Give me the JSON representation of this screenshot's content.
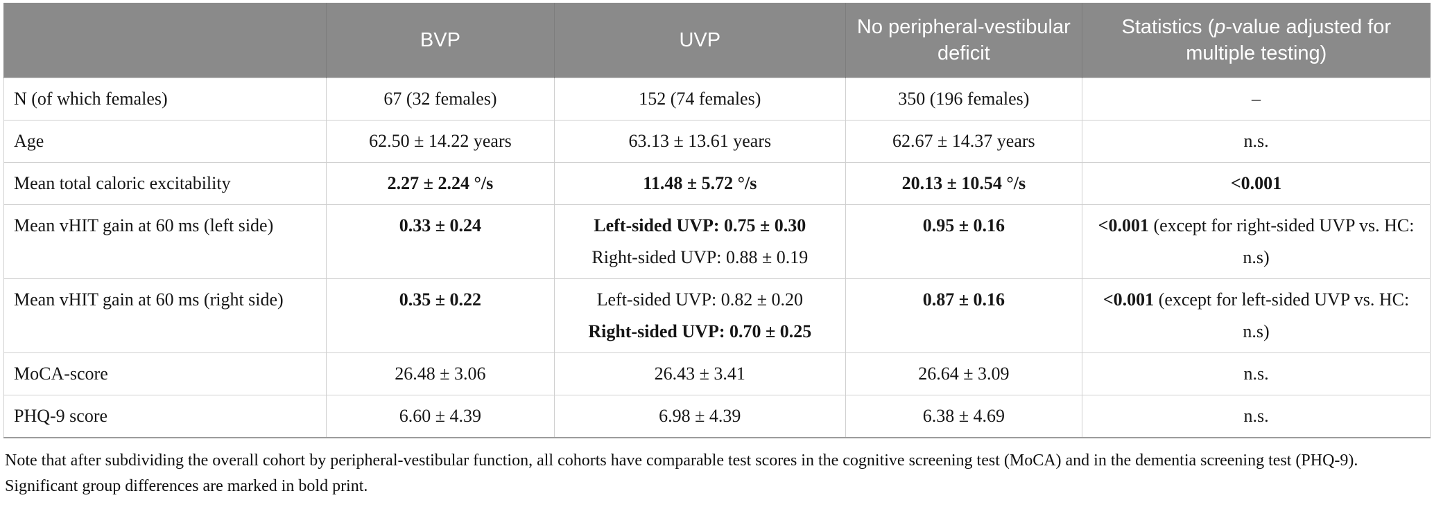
{
  "colors": {
    "header_bg": "#8a8a8a",
    "header_text": "#ffffff",
    "cell_border": "#cfcfcf",
    "table_bottom_border": "#9b9b9b"
  },
  "table": {
    "header": {
      "columns": [
        {
          "name": "row-category",
          "segments": []
        },
        {
          "name": "bvp",
          "segments": [
            {
              "text": "BVP"
            }
          ]
        },
        {
          "name": "uvp",
          "segments": [
            {
              "text": "UVP"
            }
          ]
        },
        {
          "name": "no-deficit",
          "segments": [
            {
              "text": "No peripheral-vestibular deficit"
            }
          ]
        },
        {
          "name": "statistics",
          "segments": [
            {
              "text": "Statistics ("
            },
            {
              "text": "p",
              "italic": true
            },
            {
              "text": "-value adjusted for multiple testing)"
            }
          ]
        }
      ]
    },
    "rows": [
      {
        "name": "n-females",
        "label": "N (of which females)",
        "cells": [
          [
            {
              "text": "67 (32 females)"
            }
          ],
          [
            {
              "text": "152 (74 females)"
            }
          ],
          [
            {
              "text": "350 (196 females)"
            }
          ],
          [
            {
              "text": "–"
            }
          ]
        ]
      },
      {
        "name": "age",
        "label": "Age",
        "cells": [
          [
            {
              "text": "62.50 ± 14.22 years"
            }
          ],
          [
            {
              "text": "63.13 ± 13.61 years"
            }
          ],
          [
            {
              "text": "62.67 ± 14.37 years"
            }
          ],
          [
            {
              "text": "n.s."
            }
          ]
        ]
      },
      {
        "name": "caloric-excitability",
        "label": "Mean total caloric excitability",
        "cells": [
          [
            {
              "text": "2.27 ± 2.24 °/s",
              "bold": true
            }
          ],
          [
            {
              "text": "11.48 ± 5.72 °/s",
              "bold": true
            }
          ],
          [
            {
              "text": "20.13 ± 10.54 °/s",
              "bold": true
            }
          ],
          [
            {
              "text": "<0.001",
              "bold": true
            }
          ]
        ]
      },
      {
        "name": "vhit-left",
        "label": "Mean vHIT gain at 60 ms (left side)",
        "cells": [
          [
            {
              "text": "0.33 ± 0.24",
              "bold": true
            }
          ],
          [
            {
              "text": "Left-sided UVP: 0.75 ± 0.30",
              "bold": true,
              "block": true
            },
            {
              "text": "Right-sided UVP: 0.88 ± 0.19",
              "block": true
            }
          ],
          [
            {
              "text": "0.95 ± 0.16",
              "bold": true
            }
          ],
          [
            {
              "text": "<0.001",
              "bold": true
            },
            {
              "text": " (except for right-sided UVP vs. HC: n.s)"
            }
          ]
        ]
      },
      {
        "name": "vhit-right",
        "label": "Mean vHIT gain at 60 ms (right side)",
        "cells": [
          [
            {
              "text": "0.35 ± 0.22",
              "bold": true
            }
          ],
          [
            {
              "text": "Left-sided UVP: 0.82 ± 0.20",
              "block": true
            },
            {
              "text": "Right-sided UVP: 0.70 ± 0.25",
              "bold": true,
              "block": true
            }
          ],
          [
            {
              "text": "0.87 ± 0.16",
              "bold": true
            }
          ],
          [
            {
              "text": "<0.001",
              "bold": true
            },
            {
              "text": " (except for left-sided UVP vs. HC: n.s)"
            }
          ]
        ]
      },
      {
        "name": "moca",
        "label": "MoCA-score",
        "cells": [
          [
            {
              "text": "26.48 ± 3.06"
            }
          ],
          [
            {
              "text": "26.43 ± 3.41"
            }
          ],
          [
            {
              "text": "26.64 ± 3.09"
            }
          ],
          [
            {
              "text": "n.s."
            }
          ]
        ]
      },
      {
        "name": "phq9",
        "label": "PHQ-9 score",
        "cells": [
          [
            {
              "text": "6.60 ± 4.39"
            }
          ],
          [
            {
              "text": "6.98 ± 4.39"
            }
          ],
          [
            {
              "text": "6.38 ± 4.69"
            }
          ],
          [
            {
              "text": "n.s."
            }
          ]
        ]
      }
    ]
  },
  "footnote": "Note that after subdividing the overall cohort by peripheral-vestibular function, all cohorts have comparable test scores in the cognitive screening test (MoCA) and in the dementia screening test (PHQ-9). Significant group differences are marked in bold print."
}
